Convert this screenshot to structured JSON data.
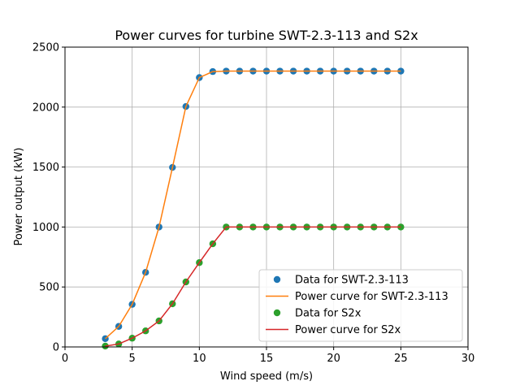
{
  "chart_data": {
    "type": "line",
    "title": "Power curves for turbine SWT-2.3-113 and S2x",
    "xlabel": "Wind speed (m/s)",
    "ylabel": "Power output (kW)",
    "xlim": [
      0,
      30
    ],
    "ylim": [
      0,
      2500
    ],
    "xticks": [
      0,
      5,
      10,
      15,
      20,
      25,
      30
    ],
    "yticks": [
      0,
      500,
      1000,
      1500,
      2000,
      2500
    ],
    "grid": true,
    "legend_position": "lower-right",
    "x": [
      3,
      4,
      5,
      6,
      7,
      8,
      9,
      10,
      11,
      12,
      13,
      14,
      15,
      16,
      17,
      18,
      19,
      20,
      21,
      22,
      23,
      24,
      25
    ],
    "series": [
      {
        "name": "Data for SWT-2.3-113",
        "kind": "scatter",
        "color": "#1f77b4",
        "values": [
          69,
          171,
          355,
          622,
          1000,
          1497,
          2005,
          2246,
          2296,
          2300,
          2300,
          2300,
          2300,
          2300,
          2300,
          2300,
          2300,
          2300,
          2300,
          2300,
          2300,
          2300,
          2300
        ]
      },
      {
        "name": "Power curve for SWT-2.3-113",
        "kind": "line",
        "color": "#ff7f0e",
        "values": [
          69,
          171,
          355,
          622,
          1000,
          1497,
          2005,
          2246,
          2296,
          2300,
          2300,
          2300,
          2300,
          2300,
          2300,
          2300,
          2300,
          2300,
          2300,
          2300,
          2300,
          2300,
          2300
        ]
      },
      {
        "name": "Data for S2x",
        "kind": "scatter",
        "color": "#2ca02c",
        "values": [
          7,
          25,
          73,
          134,
          217,
          360,
          542,
          703,
          860,
          1000,
          1000,
          1000,
          1000,
          1000,
          1000,
          1000,
          1000,
          1000,
          1000,
          1000,
          1000,
          1000,
          1000
        ]
      },
      {
        "name": "Power curve for S2x",
        "kind": "line",
        "color": "#d62728",
        "values": [
          7,
          25,
          73,
          134,
          217,
          360,
          542,
          703,
          860,
          1000,
          1000,
          1000,
          1000,
          1000,
          1000,
          1000,
          1000,
          1000,
          1000,
          1000,
          1000,
          1000,
          1000
        ]
      }
    ]
  }
}
